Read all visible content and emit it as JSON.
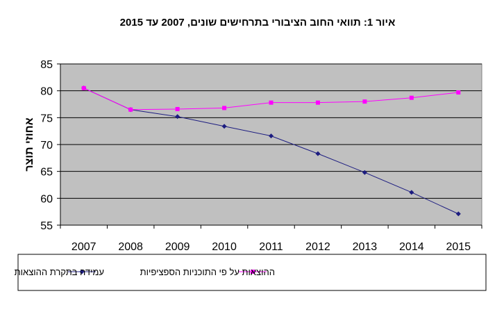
{
  "chart_data": {
    "type": "line",
    "title": "איור 1: תוואי החוב הציבורי בתרחישים שונים, 2007 עד 2015",
    "xlabel": "",
    "ylabel": "אחוזי תוצר",
    "x": [
      "2007",
      "2008",
      "2009",
      "2010",
      "2011",
      "2012",
      "2013",
      "2014",
      "2015"
    ],
    "ylim": [
      55,
      85
    ],
    "yticks": [
      55,
      60,
      65,
      70,
      75,
      80,
      85
    ],
    "grid": true,
    "legend": "bottom",
    "series": [
      {
        "name": "עמידה בתקרת ההוצאות",
        "color": "#1c1c80",
        "marker": "diamond",
        "values": [
          80.5,
          76.5,
          75.2,
          73.4,
          71.6,
          68.3,
          64.8,
          61.1,
          57.1
        ]
      },
      {
        "name": "ההוצאות על פי התוכניות הספציפיות",
        "color": "#ff00ff",
        "marker": "square",
        "values": [
          80.5,
          76.5,
          76.6,
          76.8,
          77.8,
          77.8,
          78.0,
          78.7,
          79.7
        ]
      }
    ]
  }
}
